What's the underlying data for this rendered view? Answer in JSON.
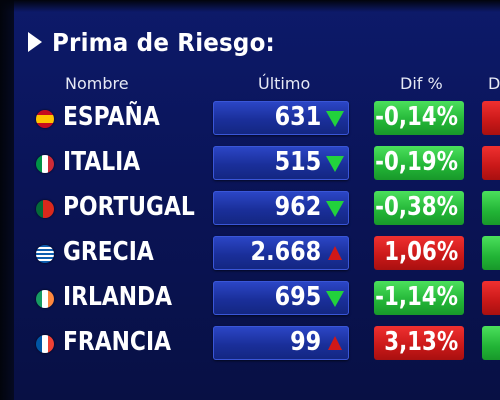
{
  "title": "Prima de Riesgo:",
  "headers": {
    "name": "Nombre",
    "last": "Último",
    "dif": "Dif %",
    "extra": "D"
  },
  "colors": {
    "up": "#d01818",
    "down": "#22d23c",
    "panel": "#1a2f9a"
  },
  "rows": [
    {
      "name": "ESPAÑA",
      "last": "631",
      "dif": "-0,14%",
      "trend": "down",
      "flag": "spain-flag-icon"
    },
    {
      "name": "ITALIA",
      "last": "515",
      "dif": "-0,19%",
      "trend": "down",
      "flag": "italy-flag-icon"
    },
    {
      "name": "PORTUGAL",
      "last": "962",
      "dif": "-0,38%",
      "trend": "down",
      "flag": "portugal-flag-icon"
    },
    {
      "name": "GRECIA",
      "last": "2.668",
      "dif": "1,06%",
      "trend": "up",
      "flag": "greece-flag-icon"
    },
    {
      "name": "IRLANDA",
      "last": "695",
      "dif": "-1,14%",
      "trend": "down",
      "flag": "ireland-flag-icon"
    },
    {
      "name": "FRANCIA",
      "last": "99",
      "dif": "3,13%",
      "trend": "up",
      "flag": "france-flag-icon"
    }
  ],
  "extra_column_trends": [
    "red",
    "red",
    "green",
    "green",
    "red",
    "green"
  ]
}
